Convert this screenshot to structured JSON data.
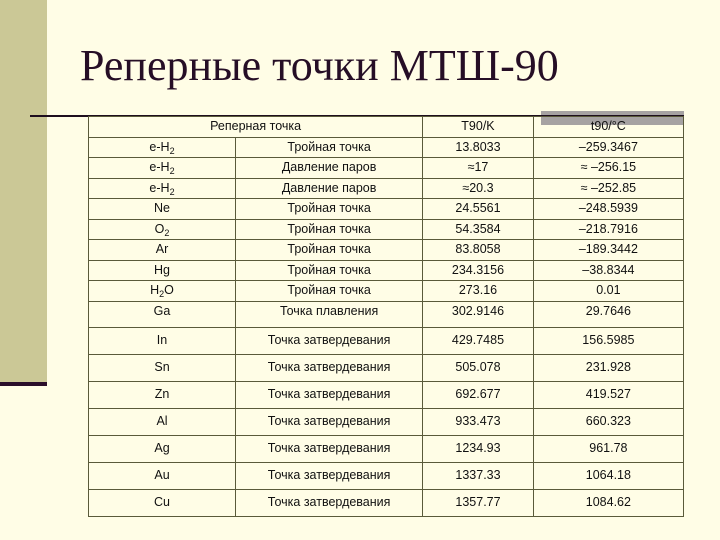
{
  "slide": {
    "title": "Реперные точки МТШ-90",
    "colors": {
      "background": "#fffde6",
      "sidebar": "#cbc896",
      "title_text": "#260e26",
      "rule": "#1e0e1e",
      "header_tab": "#a6a2a2"
    }
  },
  "table": {
    "headers": {
      "reference_point": "Реперная точка",
      "t90_k": "T90/K",
      "t90_c": "t90/°C"
    },
    "rows": [
      {
        "substance": "e-H",
        "sub": "2",
        "suffix": "",
        "type": "Тройная точка",
        "t90_k": "13.8033",
        "t90_c": "–259.3467"
      },
      {
        "substance": "e-H",
        "sub": "2",
        "suffix": "",
        "type": "Давление паров",
        "t90_k": "≈17",
        "t90_c": "≈ –256.15"
      },
      {
        "substance": "e-H",
        "sub": "2",
        "suffix": "",
        "type": "Давление паров",
        "t90_k": "≈20.3",
        "t90_c": "≈ –252.85"
      },
      {
        "substance": "Ne",
        "sub": "",
        "suffix": "",
        "type": "Тройная точка",
        "t90_k": "24.5561",
        "t90_c": "–248.5939"
      },
      {
        "substance": "O",
        "sub": "2",
        "suffix": "",
        "type": "Тройная точка",
        "t90_k": "54.3584",
        "t90_c": "–218.7916"
      },
      {
        "substance": "Ar",
        "sub": "",
        "suffix": "",
        "type": "Тройная точка",
        "t90_k": "83.8058",
        "t90_c": "–189.3442"
      },
      {
        "substance": "Hg",
        "sub": "",
        "suffix": "",
        "type": "Тройная точка",
        "t90_k": "234.3156",
        "t90_c": "–38.8344"
      },
      {
        "substance": "H",
        "sub": "2",
        "suffix": "O",
        "type": "Тройная точка",
        "t90_k": "273.16",
        "t90_c": "0.01"
      },
      {
        "substance": "Ga",
        "sub": "",
        "suffix": "",
        "type": "Точка плавления",
        "t90_k": "302.9146",
        "t90_c": "29.7646"
      },
      {
        "substance": "In",
        "sub": "",
        "suffix": "",
        "type": "Точка затвердевания",
        "t90_k": "429.7485",
        "t90_c": "156.5985"
      },
      {
        "substance": "Sn",
        "sub": "",
        "suffix": "",
        "type": "Точка затвердевания",
        "t90_k": "505.078",
        "t90_c": "231.928"
      },
      {
        "substance": "Zn",
        "sub": "",
        "suffix": "",
        "type": "Точка затвердевания",
        "t90_k": "692.677",
        "t90_c": "419.527"
      },
      {
        "substance": "Al",
        "sub": "",
        "suffix": "",
        "type": "Точка затвердевания",
        "t90_k": "933.473",
        "t90_c": "660.323"
      },
      {
        "substance": "Ag",
        "sub": "",
        "suffix": "",
        "type": "Точка затвердевания",
        "t90_k": "1234.93",
        "t90_c": "961.78"
      },
      {
        "substance": "Au",
        "sub": "",
        "suffix": "",
        "type": "Точка затвердевания",
        "t90_k": "1337.33",
        "t90_c": "1064.18"
      },
      {
        "substance": "Cu",
        "sub": "",
        "suffix": "",
        "type": "Точка затвердевания",
        "t90_k": "1357.77",
        "t90_c": "1084.62"
      }
    ]
  }
}
